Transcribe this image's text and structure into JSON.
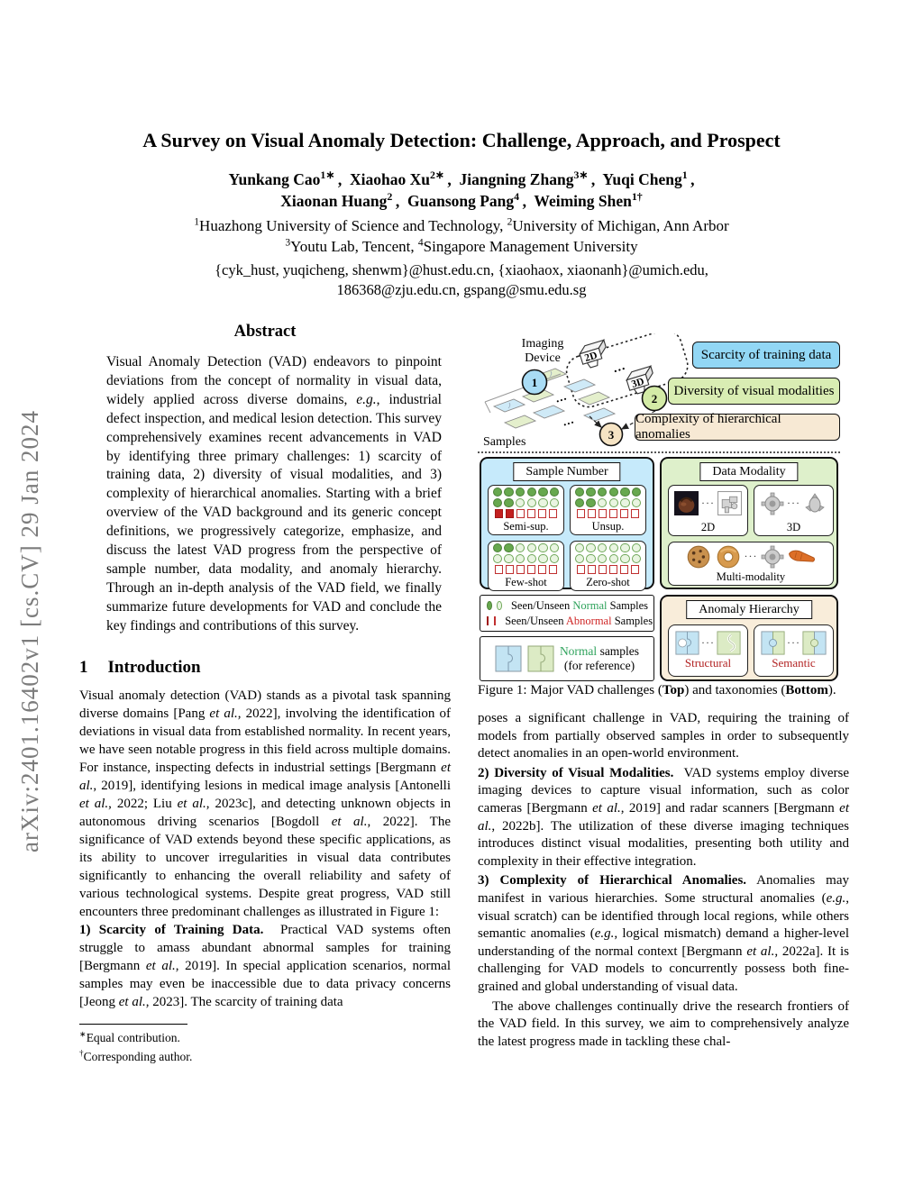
{
  "watermark": "arXiv:2401.16402v1  [cs.CV]  29 Jan 2024",
  "header": {
    "title": "A Survey on Visual Anomaly Detection: Challenge, Approach, and Prospect",
    "authors_line1_html": "Yunkang Cao<sup>1∗</sup>&thinsp;,&nbsp; Xiaohao Xu<sup>2∗</sup>&thinsp;,&nbsp; Jiangning Zhang<sup>3∗</sup>&thinsp;,&nbsp; Yuqi Cheng<sup>1</sup>&thinsp;,",
    "authors_line2_html": "Xiaonan Huang<sup>2</sup>&thinsp;,&nbsp; Guansong Pang<sup>4</sup>&thinsp;,&nbsp; Weiming Shen<sup>1†</sup>",
    "affiliation_line1_html": "<sup>1</sup>Huazhong University of Science and Technology, <sup>2</sup>University of Michigan, Ann Arbor",
    "affiliation_line2_html": "<sup>3</sup>Youtu Lab, Tencent, <sup>4</sup>Singapore Management University",
    "emails_line1": "{cyk_hust, yuqicheng, shenwm}@hust.edu.cn, {xiaohaox, xiaonanh}@umich.edu,",
    "emails_line2": "186368@zju.edu.cn, gspang@smu.edu.sg"
  },
  "abstract": {
    "heading": "Abstract",
    "body_html": "Visual Anomaly Detection (VAD) endeavors to pinpoint deviations from the concept of normality in visual data, widely applied across diverse domains, <i>e.g.</i>, industrial defect inspection, and medical lesion detection. This survey comprehensively examines recent advancements in VAD by identifying three primary challenges: 1) scarcity of training data, 2) diversity of visual modalities, and 3) complexity of hierarchical anomalies. Starting with a brief overview of the VAD background and its generic concept definitions, we progressively categorize, emphasize, and discuss the latest VAD progress from the perspective of sample number, data modality, and anomaly hierarchy. Through an in-depth analysis of the VAD field, we finally summarize future developments for VAD and conclude the key findings and contributions of this survey."
  },
  "introduction": {
    "number": "1",
    "heading": "Introduction",
    "p1_html": "Visual anomaly detection (VAD) stands as a pivotal task spanning diverse domains [Pang <i>et al.</i>, 2022], involving the identification of deviations in visual data from established normality. In recent years, we have seen notable progress in this field across multiple domains. For instance, inspecting defects in industrial settings [Bergmann <i>et al.</i>, 2019], identifying lesions in medical image analysis [Antonelli <i>et al.</i>, 2022; Liu <i>et al.</i>, 2023c], and detecting unknown objects in autonomous driving scenarios [Bogdoll <i>et al.</i>, 2022]. The significance of VAD extends beyond these specific applications, as its ability to uncover irregularities in visual data contributes significantly to enhancing the overall reliability and safety of various technological systems. Despite great progress, VAD still encounters three predominant challenges as illustrated in Figure 1:",
    "p2_html": "<b>1) Scarcity of Training Data.</b>&nbsp; Practical VAD systems often struggle to amass abundant abnormal samples for training [Bergmann <i>et al.</i>, 2019]. In special application scenarios, normal samples may even be inaccessible due to data privacy concerns [Jeong <i>et al.</i>, 2023]. The scarcity of training data"
  },
  "footnotes": {
    "equal_html": "<sup>∗</sup>Equal contribution.",
    "corresponding_html": "<sup>†</sup>Corresponding author."
  },
  "figure1": {
    "imaging_line1": "Imaging",
    "imaging_line2": "Device",
    "samples_label": "Samples",
    "cam2d_label": "2D",
    "cam3d_label": "3D",
    "dots": "···",
    "step1": "1",
    "step2": "2",
    "step3": "3",
    "challenges": [
      "Scarcity of training data",
      "Diversity of visual modalities",
      "Complexity of hierarchical anomalies"
    ],
    "sample_number": {
      "header": "Sample Number",
      "cells": [
        {
          "label": "Semi-sup.",
          "rows": [
            "ffffff",
            "ffoooo",
            "FFOOOO"
          ]
        },
        {
          "label": "Unsup.",
          "rows": [
            "ffffff",
            "ffoooo",
            "OOOOOO"
          ]
        },
        {
          "label": "Few-shot",
          "rows": [
            "ffoooo",
            "oooooo",
            "OOOOOO"
          ]
        },
        {
          "label": "Zero-shot",
          "rows": [
            "oooooo",
            "oooooo",
            "OOOOOO"
          ]
        }
      ]
    },
    "data_modality": {
      "header": "Data Modality",
      "label_2d": "2D",
      "label_3d": "3D",
      "label_multi": "Multi-modality"
    },
    "legend": {
      "normal_html": "Seen/Unseen <span class='tx-green'>Normal</span> Samples",
      "abnormal_html": "Seen/Unseen <span class='tx-red'>Abnormal</span> Samples",
      "reference_html": "<span class='tx-green'>Normal</span> samples<br>(for reference)"
    },
    "anomaly_hierarchy": {
      "header": "Anomaly Hierarchy",
      "label_structural": "Structural",
      "label_semantic": "Semantic"
    },
    "caption_html": "Figure 1: Major VAD challenges (<b>Top</b>) and taxonomies (<b>Bottom</b>)."
  },
  "right_column": {
    "p1_html": "poses a significant challenge in VAD, requiring the training of models from partially observed samples in order to subsequently detect anomalies in an open-world environment.",
    "p2_html": "<b>2) Diversity of Visual Modalities.</b>&nbsp; VAD systems employ diverse imaging devices to capture visual information, such as color cameras [Bergmann <i>et al.</i>, 2019] and radar scanners [Bergmann <i>et al.</i>, 2022b]. The utilization of these diverse imaging techniques introduces distinct visual modalities, presenting both utility and complexity in their effective integration.",
    "p3_html": "<b>3) Complexity of Hierarchical Anomalies.</b> Anomalies may manifest in various hierarchies. Some structural anomalies (<i>e.g.</i>, visual scratch) can be identified through local regions, while others semantic anomalies (<i>e.g.</i>, logical mismatch) demand a higher-level understanding of the normal context [Bergmann <i>et al.</i>, 2022a]. It is challenging for VAD models to concurrently possess both fine-grained and global understanding of visual data.",
    "p4_html": "The above challenges continually drive the research frontiers of the VAD field. In this survey, we aim to comprehensively analyze the latest progress made in tackling these chal-"
  },
  "colors": {
    "challenge_blue": "#92d7f5",
    "challenge_green": "#d9edb3",
    "challenge_tan": "#f7e9d4",
    "panel_blue": "#c6eafb",
    "panel_green": "#def0cb",
    "panel_tan": "#f9edda",
    "normal_green": "#67a84e",
    "green_outline": "#6fa758",
    "abnormal_red": "#c32020",
    "red_outline": "#c03030",
    "normal_text_green": "#2fa35c",
    "abnormal_text_red": "#cf2626",
    "hierarchy_label_red": "#b22222",
    "watermark_gray": "#7c7c7c"
  }
}
